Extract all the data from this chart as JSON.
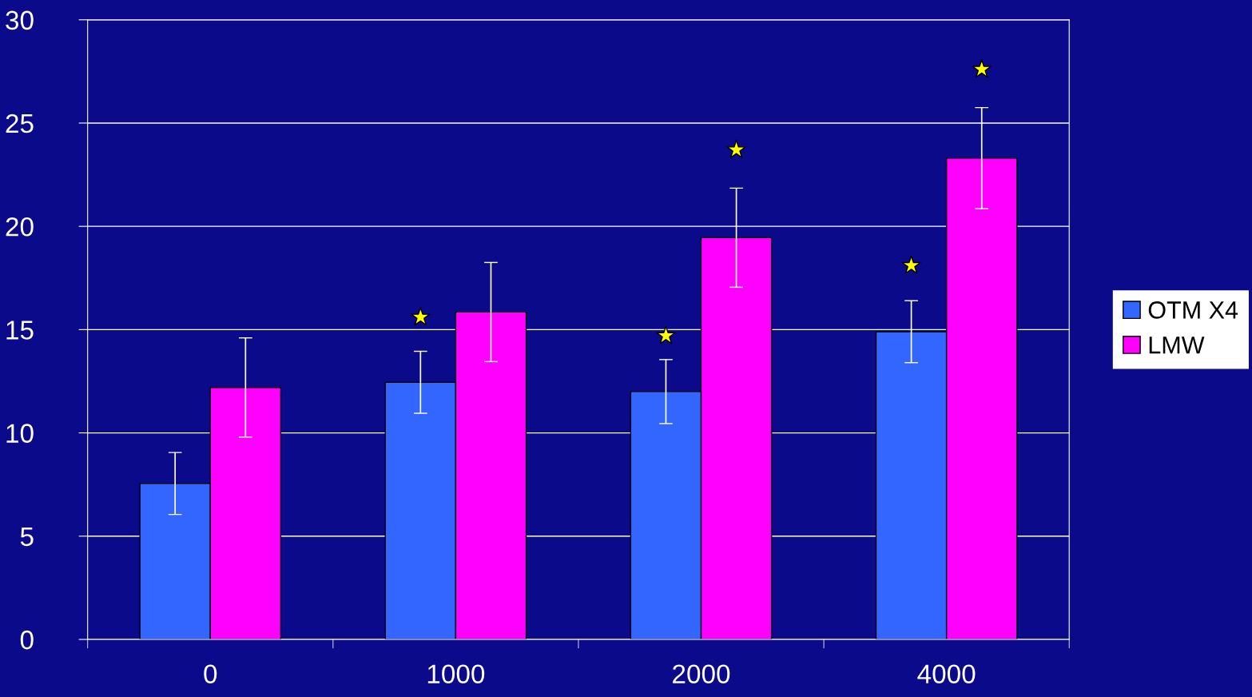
{
  "chart_data": {
    "type": "bar",
    "categories": [
      "0",
      "1000",
      "2000",
      "4000"
    ],
    "series": [
      {
        "name": "OTM X4",
        "color": "#3366ff",
        "values": [
          7.55,
          12.45,
          12.0,
          14.9
        ],
        "errors": [
          1.5,
          1.5,
          1.55,
          1.5
        ]
      },
      {
        "name": "LMW",
        "color": "#ff00ff",
        "values": [
          12.2,
          15.85,
          19.45,
          23.3
        ],
        "errors": [
          2.4,
          2.4,
          2.4,
          2.45
        ]
      },
      {
        "type": "scatter",
        "color": "#ffff00",
        "values": [
          null,
          15.6,
          14.7,
          18.1
        ]
      },
      {
        "type": "scatter",
        "color": "#ffff00",
        "values": [
          null,
          null,
          23.7,
          27.6
        ]
      }
    ],
    "ylim": [
      0,
      30
    ],
    "yticks": [
      0,
      5,
      10,
      15,
      20,
      25,
      30
    ],
    "grid": "y",
    "legend": "right",
    "marker": "star"
  }
}
